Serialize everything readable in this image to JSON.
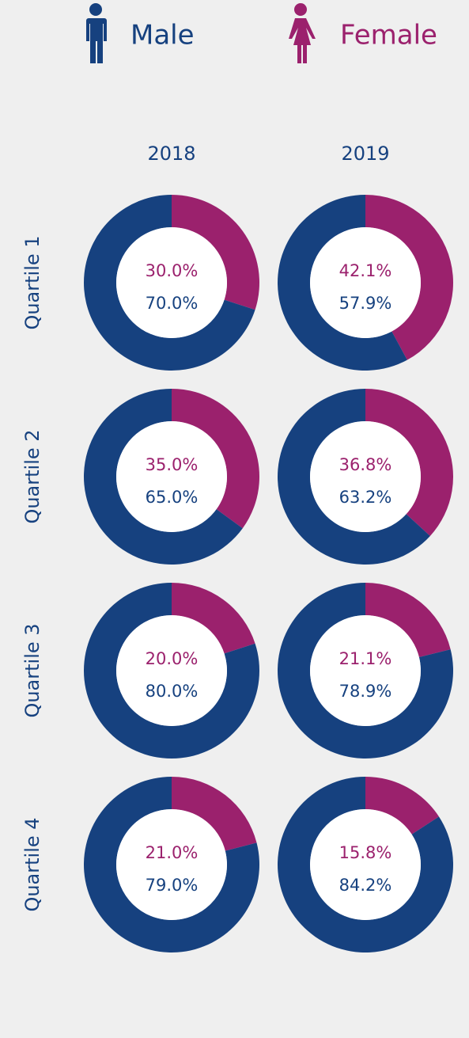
{
  "legend": [
    {
      "name": "Male",
      "color": "#16417f"
    },
    {
      "name": "Female",
      "color": "#9b216d"
    }
  ],
  "columns": [
    "2018",
    "2019"
  ],
  "rows": [
    "Quartile 1",
    "Quartile 2",
    "Quartile 3",
    "Quartile 4"
  ],
  "chart_data": [
    {
      "type": "pie",
      "values": [
        30.0,
        70.0
      ],
      "value_labels": [
        "30.0%",
        "70.0%"
      ]
    },
    {
      "type": "pie",
      "values": [
        42.1,
        57.9
      ],
      "value_labels": [
        "42.1%",
        "57.9%"
      ]
    },
    {
      "type": "pie",
      "values": [
        35.0,
        65.0
      ],
      "value_labels": [
        "35.0%",
        "65.0%"
      ]
    },
    {
      "type": "pie",
      "values": [
        36.8,
        63.2
      ],
      "value_labels": [
        "36.8%",
        "63.2%"
      ]
    },
    {
      "type": "pie",
      "values": [
        20.0,
        80.0
      ],
      "value_labels": [
        "20.0%",
        "80.0%"
      ]
    },
    {
      "type": "pie",
      "values": [
        21.1,
        78.9
      ],
      "value_labels": [
        "21.1%",
        "78.9%"
      ]
    },
    {
      "type": "pie",
      "values": [
        21.0,
        79.0
      ],
      "value_labels": [
        "21.0%",
        "79.0%"
      ]
    },
    {
      "type": "pie",
      "values": [
        15.8,
        84.2
      ],
      "value_labels": [
        "15.8%",
        "84.2%"
      ]
    }
  ]
}
